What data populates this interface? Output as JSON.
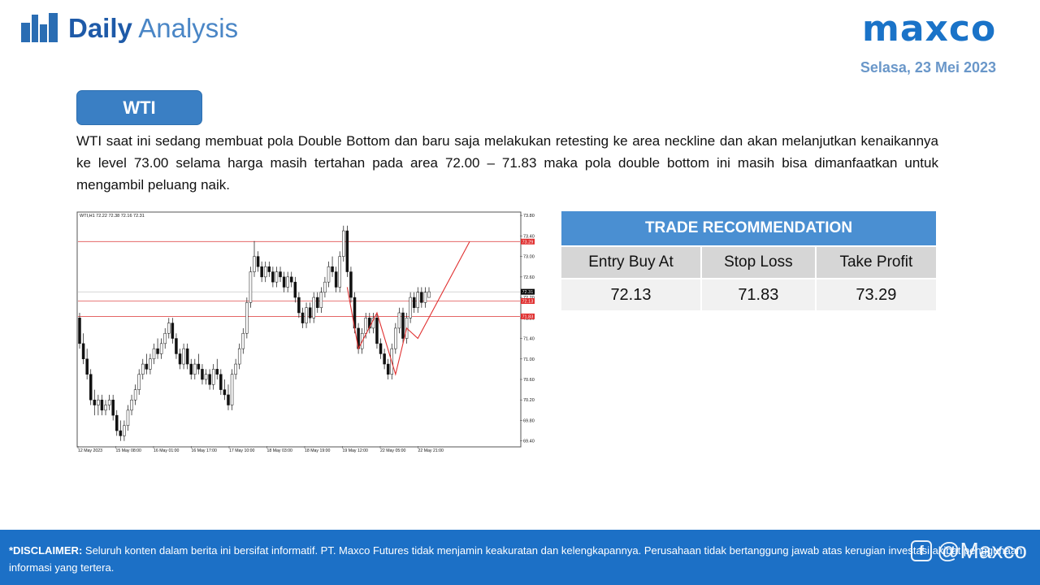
{
  "header": {
    "title_bold": "Daily",
    "title_light": "Analysis",
    "brand": "maxco",
    "date": "Selasa, 23 Mei 2023"
  },
  "instrument": "WTI",
  "analysis_text": "WTI saat ini sedang membuat pola Double Bottom dan baru saja melakukan retesting ke area neckline dan akan melanjutkan kenaikannya ke level 73.00 selama harga masih tertahan pada area 72.00 – 71.83 maka pola double bottom ini masih bisa dimanfaatkan untuk mengambil peluang naik.",
  "trade": {
    "title": "TRADE RECOMMENDATION",
    "headers": [
      "Entry Buy At",
      "Stop Loss",
      "Take Profit"
    ],
    "values": [
      "72.13",
      "71.83",
      "73.29"
    ]
  },
  "chart_data": {
    "type": "candlestick",
    "symbol_label": "WTI,H1  72.22 72.38 72.16 72.31",
    "ylim": [
      69.3,
      73.85
    ],
    "y_ticks": [
      "73.80",
      "73.40",
      "73.00",
      "72.60",
      "72.20",
      "71.80",
      "71.40",
      "71.00",
      "70.60",
      "70.20",
      "69.80",
      "69.40"
    ],
    "x_ticks": [
      "12 May 2023",
      "15 May 08:00",
      "16 May 01:00",
      "16 May 17:00",
      "17 May 10:00",
      "18 May 03:00",
      "18 May 19:00",
      "19 May 12:00",
      "22 May 05:00",
      "22 May 21:00"
    ],
    "price_tags": [
      {
        "value": "73.29",
        "color": "#e03030"
      },
      {
        "value": "72.31",
        "color": "#000000"
      },
      {
        "value": "72.13",
        "color": "#e03030"
      },
      {
        "value": "71.83",
        "color": "#e03030"
      }
    ],
    "levels": {
      "take_profit": 73.29,
      "current": 72.31,
      "entry": 72.13,
      "stop_loss": 71.83
    },
    "candles": [
      [
        71.8,
        71.9,
        71.2,
        71.3
      ],
      [
        71.3,
        71.5,
        70.9,
        71.0
      ],
      [
        71.0,
        71.2,
        70.6,
        70.7
      ],
      [
        70.7,
        70.8,
        70.1,
        70.2
      ],
      [
        70.2,
        70.4,
        69.9,
        70.1
      ],
      [
        70.1,
        70.3,
        69.9,
        70.2
      ],
      [
        70.2,
        70.3,
        69.9,
        70.0
      ],
      [
        70.0,
        70.2,
        69.9,
        70.1
      ],
      [
        70.1,
        70.3,
        70.0,
        70.2
      ],
      [
        70.2,
        70.3,
        69.8,
        69.9
      ],
      [
        69.9,
        70.0,
        69.5,
        69.6
      ],
      [
        69.6,
        69.8,
        69.4,
        69.5
      ],
      [
        69.5,
        69.8,
        69.4,
        69.7
      ],
      [
        69.7,
        70.1,
        69.6,
        70.0
      ],
      [
        70.0,
        70.3,
        69.9,
        70.2
      ],
      [
        70.2,
        70.5,
        70.1,
        70.4
      ],
      [
        70.4,
        70.8,
        70.3,
        70.7
      ],
      [
        70.7,
        71.0,
        70.6,
        70.9
      ],
      [
        70.9,
        71.1,
        70.7,
        70.8
      ],
      [
        70.8,
        71.1,
        70.7,
        71.0
      ],
      [
        71.0,
        71.3,
        70.9,
        71.2
      ],
      [
        71.2,
        71.4,
        71.0,
        71.1
      ],
      [
        71.1,
        71.4,
        71.0,
        71.3
      ],
      [
        71.3,
        71.6,
        71.2,
        71.5
      ],
      [
        71.5,
        71.8,
        71.4,
        71.7
      ],
      [
        71.7,
        71.8,
        71.3,
        71.4
      ],
      [
        71.4,
        71.5,
        71.0,
        71.1
      ],
      [
        71.1,
        71.2,
        70.8,
        70.9
      ],
      [
        70.9,
        71.3,
        70.8,
        71.2
      ],
      [
        71.2,
        71.3,
        70.8,
        70.9
      ],
      [
        70.9,
        71.0,
        70.6,
        70.7
      ],
      [
        70.7,
        71.0,
        70.6,
        70.9
      ],
      [
        70.9,
        71.1,
        70.7,
        70.8
      ],
      [
        70.8,
        70.9,
        70.5,
        70.6
      ],
      [
        70.6,
        70.8,
        70.5,
        70.7
      ],
      [
        70.7,
        70.8,
        70.4,
        70.5
      ],
      [
        70.5,
        70.9,
        70.4,
        70.8
      ],
      [
        70.8,
        71.0,
        70.6,
        70.7
      ],
      [
        70.7,
        70.8,
        70.3,
        70.4
      ],
      [
        70.4,
        70.6,
        70.2,
        70.3
      ],
      [
        70.3,
        70.5,
        70.0,
        70.1
      ],
      [
        70.1,
        70.8,
        70.0,
        70.7
      ],
      [
        70.7,
        71.0,
        70.6,
        70.9
      ],
      [
        70.9,
        71.3,
        70.8,
        71.2
      ],
      [
        71.2,
        71.6,
        71.1,
        71.5
      ],
      [
        71.5,
        72.2,
        71.4,
        72.1
      ],
      [
        72.1,
        72.8,
        72.0,
        72.7
      ],
      [
        72.7,
        73.3,
        72.6,
        73.0
      ],
      [
        73.0,
        73.1,
        72.7,
        72.8
      ],
      [
        72.8,
        72.9,
        72.5,
        72.6
      ],
      [
        72.6,
        72.9,
        72.5,
        72.8
      ],
      [
        72.8,
        72.9,
        72.6,
        72.7
      ],
      [
        72.7,
        72.8,
        72.4,
        72.5
      ],
      [
        72.5,
        72.8,
        72.4,
        72.7
      ],
      [
        72.7,
        72.8,
        72.5,
        72.6
      ],
      [
        72.6,
        72.7,
        72.3,
        72.4
      ],
      [
        72.4,
        72.7,
        72.3,
        72.6
      ],
      [
        72.6,
        72.7,
        72.4,
        72.5
      ],
      [
        72.5,
        72.6,
        72.1,
        72.2
      ],
      [
        72.2,
        72.3,
        71.8,
        71.9
      ],
      [
        71.9,
        72.0,
        71.6,
        71.7
      ],
      [
        71.7,
        72.1,
        71.6,
        72.0
      ],
      [
        72.0,
        72.1,
        71.7,
        71.8
      ],
      [
        71.8,
        72.3,
        71.7,
        72.2
      ],
      [
        72.2,
        72.3,
        71.9,
        72.0
      ],
      [
        72.0,
        72.4,
        71.9,
        72.3
      ],
      [
        72.3,
        72.6,
        72.2,
        72.5
      ],
      [
        72.5,
        72.9,
        72.4,
        72.8
      ],
      [
        72.8,
        73.0,
        72.6,
        72.7
      ],
      [
        72.7,
        72.8,
        72.3,
        72.4
      ],
      [
        72.4,
        73.1,
        72.3,
        73.0
      ],
      [
        73.0,
        73.6,
        72.9,
        73.5
      ],
      [
        73.5,
        73.6,
        72.6,
        72.7
      ],
      [
        72.7,
        72.8,
        72.1,
        72.2
      ],
      [
        72.2,
        72.3,
        71.5,
        71.6
      ],
      [
        71.6,
        71.7,
        71.1,
        71.2
      ],
      [
        71.2,
        71.6,
        71.1,
        71.5
      ],
      [
        71.5,
        71.9,
        71.4,
        71.8
      ],
      [
        71.8,
        71.9,
        71.5,
        71.6
      ],
      [
        71.6,
        71.9,
        71.5,
        71.8
      ],
      [
        71.8,
        71.9,
        71.2,
        71.3
      ],
      [
        71.3,
        71.4,
        71.0,
        71.1
      ],
      [
        71.1,
        71.2,
        70.8,
        70.9
      ],
      [
        70.9,
        71.0,
        70.6,
        70.7
      ],
      [
        70.7,
        71.3,
        70.6,
        71.2
      ],
      [
        71.2,
        71.7,
        71.1,
        71.6
      ],
      [
        71.6,
        72.0,
        71.5,
        71.9
      ],
      [
        71.9,
        72.0,
        71.3,
        71.4
      ],
      [
        71.4,
        71.9,
        71.3,
        71.8
      ],
      [
        71.8,
        72.3,
        71.7,
        72.2
      ],
      [
        72.2,
        72.3,
        71.9,
        72.0
      ],
      [
        72.0,
        72.4,
        71.9,
        72.3
      ],
      [
        72.3,
        72.4,
        72.0,
        72.1
      ],
      [
        72.1,
        72.4,
        72.0,
        72.3
      ],
      [
        72.2,
        72.4,
        72.2,
        72.31
      ]
    ]
  }
}
